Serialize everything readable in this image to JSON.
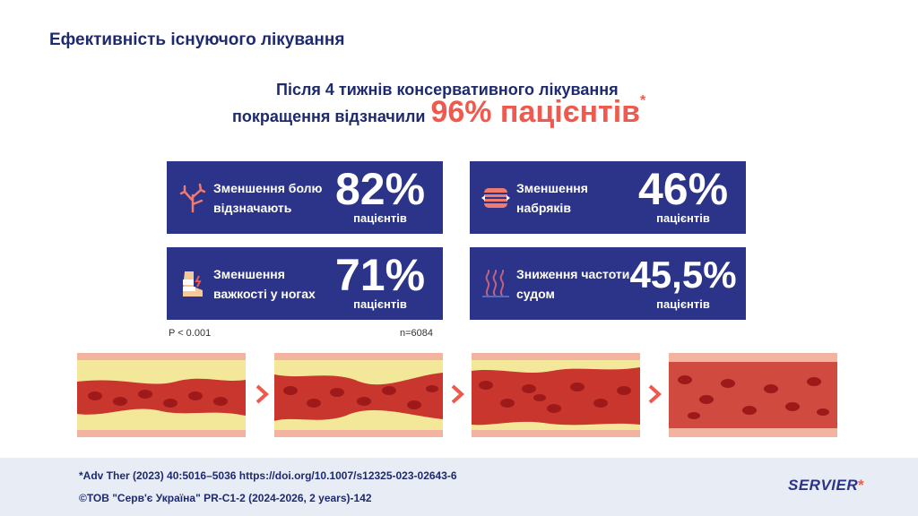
{
  "title": "Ефективність існуючого лікування",
  "headline": {
    "line1": "Після 4 тижнів консервативного лікування",
    "line2_prefix": "покращення відзначили",
    "line2_highlight": "96% пацієнтів",
    "asterisk": "*"
  },
  "cards": [
    {
      "label": "Зменшення болю відзначають",
      "value": "82%",
      "unit": "пацієнтів",
      "icon": "vein-branch-icon"
    },
    {
      "label": "Зменшення набряків",
      "value": "46%",
      "unit": "пацієнтів",
      "icon": "swollen-leg-icon"
    },
    {
      "label": "Зменшення важкості у ногах",
      "value": "71%",
      "unit": "пацієнтів",
      "icon": "heavy-leg-icon"
    },
    {
      "label": "Зниження частоти судом",
      "value": "45,5%",
      "unit": "пацієнтів",
      "icon": "cramp-icon"
    }
  ],
  "notes": {
    "p_value": "P < 0.001",
    "n": "n=6084"
  },
  "colors": {
    "navy": "#2b3488",
    "accent": "#f05a4e",
    "footer_bg": "#e8edf5"
  },
  "footer": {
    "reference": "*Adv Ther (2023) 40:5016–5036 https://doi.org/10.1007/s12325-023-02643-6",
    "copyright": "©ТОВ \"Серв'є Україна\" PR-C1-2 (2024-2026, 2 years)-142",
    "logo": "SERVIER",
    "logo_star": "*"
  }
}
